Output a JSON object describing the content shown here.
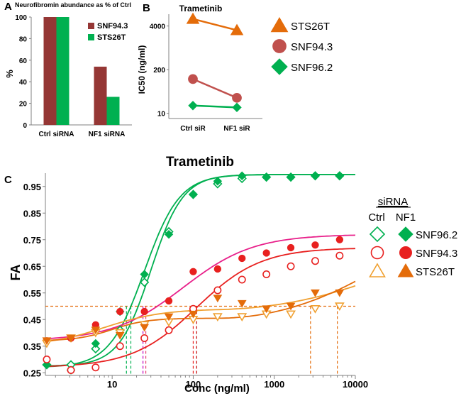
{
  "panels": {
    "a": "A",
    "b": "B",
    "c": "C"
  },
  "chart_data": [
    {
      "panel": "A",
      "type": "bar",
      "title": "Neurofibromin abundance as % of Ctrl",
      "ylabel": "%",
      "ylim": [
        0,
        100
      ],
      "yticks": [
        "0",
        "20",
        "40",
        "60",
        "80",
        "100"
      ],
      "categories": [
        "Ctrl siRNA",
        "NF1 siRNA"
      ],
      "legend_position": "right",
      "series": [
        {
          "name": "SNF94.3",
          "color": "#953735",
          "values": [
            100,
            54
          ]
        },
        {
          "name": "STS26T",
          "color": "#00b050",
          "values": [
            100,
            26
          ]
        }
      ]
    },
    {
      "panel": "B",
      "type": "line",
      "title": "Trametinib",
      "ylabel": "IC50 (ng/ml)",
      "yscale": "log",
      "yticks": [
        "10",
        "200",
        "4000"
      ],
      "categories": [
        "Ctrl siR",
        "NF1 siR"
      ],
      "legend_position": "right",
      "series": [
        {
          "name": "STS26T",
          "color": "#e46c0a",
          "marker": "triangle",
          "values": [
            6500,
            3000
          ]
        },
        {
          "name": "SNF94.3",
          "color": "#c0504d",
          "marker": "circle",
          "values": [
            105,
            29
          ]
        },
        {
          "name": "SNF96.2",
          "color": "#00b050",
          "marker": "diamond",
          "values": [
            17,
            15
          ]
        }
      ]
    },
    {
      "panel": "C",
      "type": "scatter",
      "title": "Trametinib",
      "xlabel": "Conc  (ng/ml)",
      "ylabel": "FA",
      "xscale": "log",
      "xlim": [
        1.5,
        10000
      ],
      "ylim": [
        0.24,
        1.0
      ],
      "xticks": [
        "10",
        "100",
        "1000",
        "10000"
      ],
      "yticks": [
        "0.25",
        "0.35",
        "0.45",
        "0.55",
        "0.65",
        "0.75",
        "0.85",
        "0.95"
      ],
      "legend": {
        "title": "siRNA",
        "col_ctrl": "Ctrl",
        "col_nf1": "NF1"
      },
      "reference_y": 0.5,
      "series": [
        {
          "name": "SNF96.2",
          "siRNA": "Ctrl",
          "color": "#00b050",
          "marker": "diamond-open",
          "x": [
            1.56,
            3.1,
            6.25,
            12.5,
            25,
            50,
            100,
            200,
            400,
            800,
            1600,
            3200,
            6400
          ],
          "y": [
            0.28,
            0.28,
            0.34,
            0.41,
            0.59,
            0.78,
            0.92,
            0.96,
            0.98,
            0.985,
            0.985,
            0.99,
            0.99
          ],
          "fit": {
            "bottom": 0.275,
            "top": 0.995,
            "ec50": 30,
            "hill": 2.2
          }
        },
        {
          "name": "SNF96.2",
          "siRNA": "NF1",
          "color": "#00b050",
          "marker": "diamond-filled",
          "x": [
            1.56,
            3.1,
            6.25,
            12.5,
            25,
            50,
            100,
            200,
            400,
            800,
            1600,
            3200,
            6400
          ],
          "y": [
            0.28,
            0.26,
            0.36,
            0.48,
            0.62,
            0.77,
            0.92,
            0.97,
            0.99,
            0.985,
            0.985,
            0.99,
            0.99
          ],
          "fit": {
            "bottom": 0.27,
            "top": 0.995,
            "ec50": 25,
            "hill": 2.0
          }
        },
        {
          "name": "SNF94.3",
          "siRNA": "Ctrl",
          "color": "#e8201f",
          "marker": "circle-open",
          "x": [
            1.56,
            3.1,
            6.25,
            12.5,
            25,
            50,
            100,
            200,
            400,
            800,
            1600,
            3200,
            6400
          ],
          "y": [
            0.3,
            0.26,
            0.27,
            0.35,
            0.38,
            0.41,
            0.49,
            0.56,
            0.6,
            0.62,
            0.65,
            0.67,
            0.69
          ],
          "fit": {
            "bottom": 0.27,
            "top": 0.72,
            "ec50": 110,
            "hill": 1.1
          }
        },
        {
          "name": "SNF94.3",
          "siRNA": "NF1",
          "color": "#e8201f",
          "marker": "circle-filled",
          "x": [
            1.56,
            3.1,
            6.25,
            12.5,
            25,
            50,
            100,
            200,
            400,
            800,
            1600,
            3200,
            6400
          ],
          "y": [
            0.37,
            0.38,
            0.43,
            0.48,
            0.48,
            0.52,
            0.63,
            0.64,
            0.68,
            0.7,
            0.72,
            0.73,
            0.75
          ],
          "fit": {
            "bottom": 0.37,
            "top": 0.77,
            "ec50": 75,
            "hill": 1.0
          }
        },
        {
          "name": "STS26T",
          "siRNA": "Ctrl",
          "color": "#f0a030",
          "marker": "triangle-down-open",
          "x": [
            1.56,
            3.1,
            6.25,
            12.5,
            25,
            50,
            100,
            200,
            400,
            800,
            1600,
            3200,
            6400
          ],
          "y": [
            0.36,
            0.38,
            0.4,
            0.4,
            0.43,
            0.44,
            0.45,
            0.46,
            0.46,
            0.47,
            0.47,
            0.49,
            0.5
          ],
          "fit": {
            "bottom": 0.35,
            "top": 0.49,
            "ec50": 8,
            "hill": 1.2,
            "tail": 0.0075
          }
        },
        {
          "name": "STS26T",
          "siRNA": "NF1",
          "color": "#e46c0a",
          "marker": "triangle-down-filled",
          "x": [
            1.56,
            3.1,
            6.25,
            12.5,
            25,
            50,
            100,
            200,
            400,
            800,
            1600,
            3200,
            6400
          ],
          "y": [
            0.37,
            0.38,
            0.41,
            0.39,
            0.42,
            0.46,
            0.47,
            0.53,
            0.51,
            0.49,
            0.5,
            0.55,
            0.55
          ],
          "fit": {
            "bottom": 0.37,
            "top": 0.455,
            "ec50": 10,
            "hill": 2.0,
            "tail": 0.012
          }
        }
      ],
      "ic50_x": [
        15,
        17,
        24,
        26,
        100,
        110,
        2800,
        6000
      ]
    }
  ]
}
